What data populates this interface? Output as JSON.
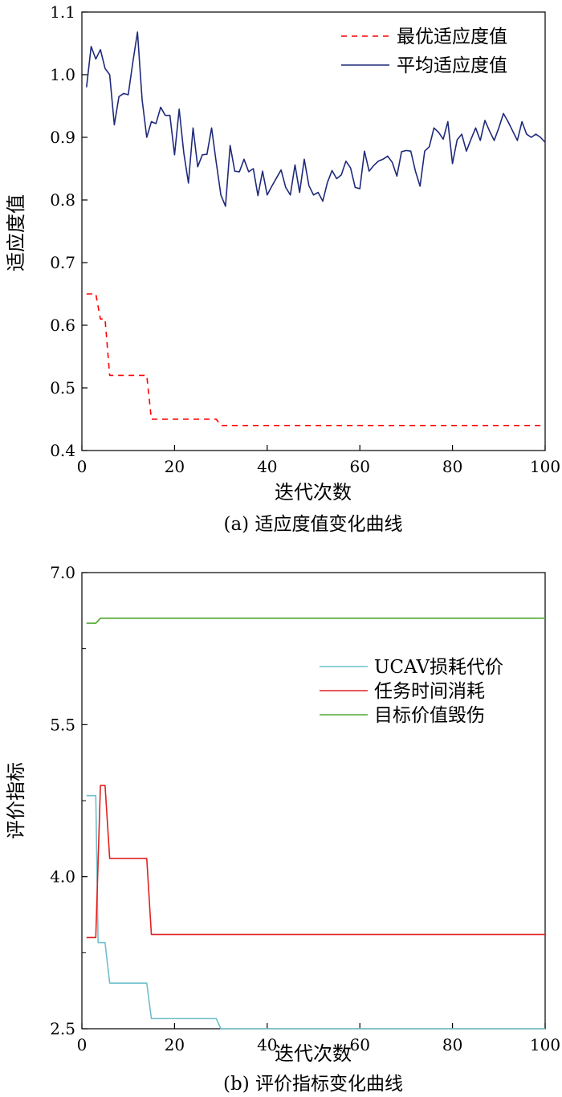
{
  "chart_data": [
    {
      "type": "line",
      "title": "",
      "caption": "(a) 适应度值变化曲线",
      "xlabel": "迭代次数",
      "ylabel": "适应度值",
      "xlim": [
        0,
        100
      ],
      "ylim": [
        0.4,
        1.1
      ],
      "xticks": [
        0,
        20,
        40,
        60,
        80,
        100
      ],
      "yticks": [
        0.4,
        0.5,
        0.6,
        0.7,
        0.8,
        0.9,
        1.0,
        1.1
      ],
      "ytick_labels": [
        "0.4",
        "0.5",
        "0.6",
        "0.7",
        "0.8",
        "0.9",
        "1.0",
        "1.1"
      ],
      "grid": false,
      "legend_position": "top-right",
      "series": [
        {
          "name": "最优适应度值",
          "color": "#ff0000",
          "style": "dashed",
          "x": [
            1,
            3,
            4,
            5,
            6,
            14,
            15,
            29,
            30,
            100
          ],
          "y": [
            0.65,
            0.65,
            0.61,
            0.61,
            0.52,
            0.52,
            0.45,
            0.45,
            0.44,
            0.44
          ]
        },
        {
          "name": "平均适应度值",
          "color": "#1f2a7a",
          "style": "solid",
          "x": [
            1,
            2,
            3,
            4,
            5,
            6,
            7,
            8,
            9,
            10,
            11,
            12,
            13,
            14,
            15,
            16,
            17,
            18,
            19,
            20,
            21,
            22,
            23,
            24,
            25,
            26,
            27,
            28,
            29,
            30,
            31,
            32,
            33,
            34,
            35,
            36,
            37,
            38,
            39,
            40,
            41,
            42,
            43,
            44,
            45,
            46,
            47,
            48,
            49,
            50,
            51,
            52,
            53,
            54,
            55,
            56,
            57,
            58,
            59,
            60,
            61,
            62,
            63,
            64,
            65,
            66,
            67,
            68,
            69,
            70,
            71,
            72,
            73,
            74,
            75,
            76,
            77,
            78,
            79,
            80,
            81,
            82,
            83,
            84,
            85,
            86,
            87,
            88,
            89,
            90,
            91,
            92,
            93,
            94,
            95,
            96,
            97,
            98,
            99,
            100
          ],
          "y": [
            0.98,
            1.045,
            1.025,
            1.04,
            1.01,
            1.0,
            0.92,
            0.965,
            0.97,
            0.968,
            1.02,
            1.068,
            0.96,
            0.9,
            0.925,
            0.922,
            0.948,
            0.935,
            0.935,
            0.872,
            0.945,
            0.875,
            0.827,
            0.915,
            0.853,
            0.872,
            0.873,
            0.915,
            0.86,
            0.808,
            0.79,
            0.887,
            0.846,
            0.845,
            0.865,
            0.845,
            0.85,
            0.807,
            0.846,
            0.808,
            0.822,
            0.835,
            0.848,
            0.82,
            0.808,
            0.856,
            0.812,
            0.865,
            0.823,
            0.808,
            0.812,
            0.798,
            0.828,
            0.847,
            0.834,
            0.84,
            0.862,
            0.851,
            0.82,
            0.818,
            0.878,
            0.846,
            0.855,
            0.862,
            0.865,
            0.87,
            0.86,
            0.838,
            0.877,
            0.879,
            0.878,
            0.846,
            0.822,
            0.878,
            0.885,
            0.915,
            0.908,
            0.897,
            0.925,
            0.858,
            0.896,
            0.905,
            0.878,
            0.897,
            0.915,
            0.895,
            0.927,
            0.91,
            0.895,
            0.915,
            0.938,
            0.925,
            0.91,
            0.895,
            0.925,
            0.905,
            0.9,
            0.905,
            0.9,
            0.892
          ]
        }
      ]
    },
    {
      "type": "line",
      "title": "",
      "caption": "(b) 评价指标变化曲线",
      "xlabel": "迭代次数",
      "ylabel": "评价指标",
      "xlim": [
        0,
        100
      ],
      "ylim": [
        2.5,
        7.0
      ],
      "xticks": [
        0,
        20,
        40,
        60,
        80,
        100
      ],
      "yticks": [
        2.5,
        4.0,
        5.5,
        7.0
      ],
      "ytick_labels": [
        "2.5",
        "4.0",
        "5.5",
        "7.0"
      ],
      "minor_yticks": [
        3.25,
        4.75,
        6.25
      ],
      "grid": false,
      "legend_position": "center-right",
      "series": [
        {
          "name": "UCAV损耗代价",
          "color": "#6fbfcc",
          "style": "solid",
          "x": [
            1,
            3,
            3.5,
            4,
            5,
            6,
            14,
            15,
            29,
            30,
            100
          ],
          "y": [
            4.8,
            4.8,
            3.35,
            3.35,
            3.35,
            2.95,
            2.95,
            2.6,
            2.6,
            2.5,
            2.5
          ]
        },
        {
          "name": "任务时间消耗",
          "color": "#e02020",
          "style": "solid",
          "x": [
            1,
            3,
            4,
            5,
            6,
            14,
            15,
            100
          ],
          "y": [
            3.4,
            3.4,
            4.9,
            4.9,
            4.18,
            4.18,
            3.43,
            3.43
          ]
        },
        {
          "name": "目标价值毁伤",
          "color": "#4ea72e",
          "style": "solid",
          "x": [
            1,
            2,
            3,
            4,
            100
          ],
          "y": [
            6.5,
            6.5,
            6.5,
            6.55,
            6.55
          ]
        }
      ]
    }
  ]
}
